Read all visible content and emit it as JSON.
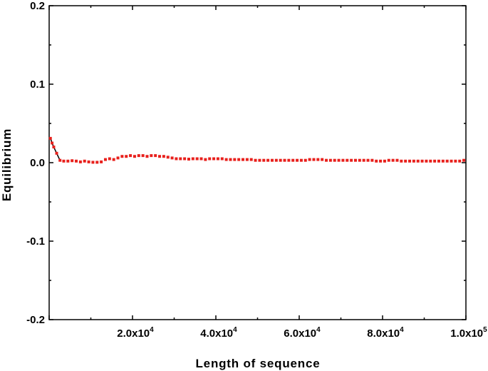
{
  "chart_data": {
    "type": "scatter",
    "title": "",
    "xlabel": "Length of sequence",
    "ylabel": "Equilibrium",
    "xlim": [
      0,
      100000
    ],
    "ylim": [
      -0.2,
      0.2
    ],
    "x_ticks": [
      {
        "value": 20000,
        "mantissa": "2.0x10",
        "exp": "4"
      },
      {
        "value": 40000,
        "mantissa": "4.0x10",
        "exp": "4"
      },
      {
        "value": 60000,
        "mantissa": "6.0x10",
        "exp": "4"
      },
      {
        "value": 80000,
        "mantissa": "8.0x10",
        "exp": "4"
      },
      {
        "value": 100000,
        "mantissa": "1.0x10",
        "exp": "5"
      }
    ],
    "y_ticks": [
      {
        "value": 0.2,
        "label": "0.2"
      },
      {
        "value": 0.1,
        "label": "0.1"
      },
      {
        "value": 0.0,
        "label": "0.0"
      },
      {
        "value": -0.1,
        "label": "-0.1"
      },
      {
        "value": -0.2,
        "label": "-0.2"
      }
    ],
    "grid": false,
    "colors": {
      "markers": "#e8201c",
      "line": "#000000",
      "axes": "#000000"
    },
    "series": [
      {
        "x": [
          300,
          700,
          1100,
          1800,
          2600,
          3500,
          4500,
          5500,
          6500,
          7500,
          8500,
          9500,
          10500,
          11500,
          12500,
          13500,
          14500,
          15500,
          16500,
          17500,
          18500,
          19500,
          20500,
          21500,
          22500,
          23500,
          24500,
          25500,
          26500,
          27500,
          28500,
          29500,
          30500,
          31500,
          32500,
          33500,
          34500,
          35500,
          36500,
          37500,
          38500,
          39500,
          40500,
          41500,
          42500,
          43500,
          44500,
          45500,
          46500,
          47500,
          48500,
          49500,
          50500,
          51500,
          52500,
          53500,
          54500,
          55500,
          56500,
          57500,
          58500,
          59500,
          60500,
          61500,
          62500,
          63500,
          64500,
          65500,
          66500,
          67500,
          68500,
          69500,
          70500,
          71500,
          72500,
          73500,
          74500,
          75500,
          76500,
          77500,
          78500,
          79500,
          80500,
          81500,
          82500,
          83500,
          84500,
          85500,
          86500,
          87500,
          88500,
          89500,
          90500,
          91500,
          92500,
          93500,
          94500,
          95500,
          96500,
          97500,
          98500,
          99500
        ],
        "y": [
          0.031,
          0.025,
          0.02,
          0.012,
          0.003,
          0.002,
          0.002,
          0.0025,
          0.002,
          0.001,
          0.002,
          0.001,
          0.0005,
          0.0005,
          0.001,
          0.004,
          0.005,
          0.004,
          0.006,
          0.008,
          0.008,
          0.009,
          0.008,
          0.009,
          0.009,
          0.008,
          0.009,
          0.009,
          0.008,
          0.008,
          0.007,
          0.006,
          0.005,
          0.005,
          0.005,
          0.0045,
          0.005,
          0.005,
          0.005,
          0.004,
          0.005,
          0.005,
          0.005,
          0.005,
          0.004,
          0.004,
          0.004,
          0.004,
          0.004,
          0.004,
          0.004,
          0.003,
          0.003,
          0.003,
          0.003,
          0.003,
          0.003,
          0.003,
          0.003,
          0.003,
          0.003,
          0.003,
          0.003,
          0.003,
          0.004,
          0.004,
          0.004,
          0.004,
          0.003,
          0.003,
          0.003,
          0.003,
          0.003,
          0.003,
          0.003,
          0.003,
          0.003,
          0.003,
          0.003,
          0.003,
          0.002,
          0.002,
          0.002,
          0.003,
          0.003,
          0.003,
          0.002,
          0.002,
          0.002,
          0.002,
          0.002,
          0.002,
          0.002,
          0.002,
          0.002,
          0.002,
          0.002,
          0.002,
          0.002,
          0.002,
          0.002,
          0.003
        ]
      }
    ]
  }
}
